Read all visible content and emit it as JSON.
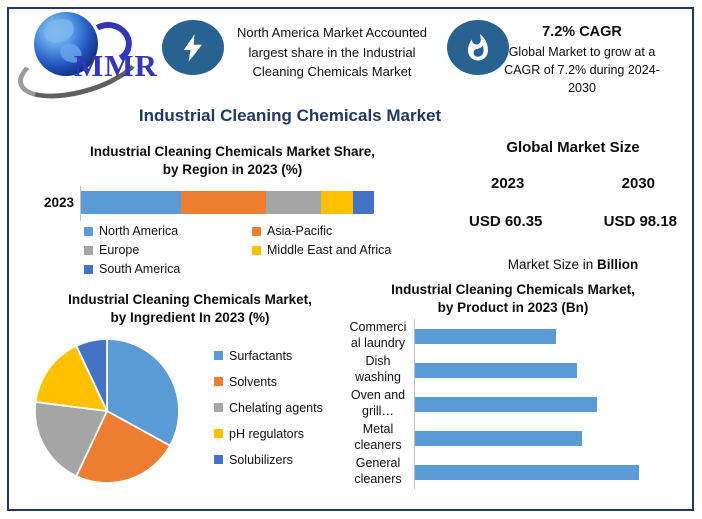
{
  "header": {
    "logo_text": "MMR",
    "highlight_text": "North America Market Accounted largest share in the Industrial Cleaning Chemicals Market",
    "cagr": {
      "title": "7.2% CAGR",
      "body": "Global Market to grow at a CAGR of 7.2% during 2024-2030"
    }
  },
  "main_title": "Industrial Cleaning Chemicals Market",
  "market_size": {
    "title": "Global Market Size",
    "year_left": "2023",
    "year_right": "2030",
    "value_left": "USD 60.35",
    "value_right": "USD 98.18",
    "note_prefix": "Market Size in ",
    "note_bold": "Billion",
    "value_color": "#1E88C7"
  },
  "colors": {
    "frame_border": "#203864",
    "title_navy": "#1F3864",
    "icon_badge": "#276290",
    "excel_blue": "#5B9BD5",
    "excel_orange": "#ED7D31",
    "excel_gray": "#A5A5A5",
    "excel_yellow": "#FFC000",
    "excel_dark_blue": "#4472C4"
  },
  "chart_data": [
    {
      "id": "region_share",
      "type": "bar",
      "subtype": "stacked-horizontal",
      "title": "Industrial Cleaning Chemicals Market Share, by Region in 2023 (%)",
      "title_lines": [
        "Industrial Cleaning Chemicals Market Share,",
        "by Region in 2023 (%)"
      ],
      "category": "2023",
      "unit": "%",
      "xlim": [
        0,
        100
      ],
      "legend_position": "bottom",
      "series": [
        {
          "name": "North America",
          "value": 34,
          "color": "#5B9BD5"
        },
        {
          "name": "Asia-Pacific",
          "value": 29,
          "color": "#ED7D31"
        },
        {
          "name": "Europe",
          "value": 19,
          "color": "#A5A5A5"
        },
        {
          "name": "Middle East and Africa",
          "value": 11,
          "color": "#FFC000"
        },
        {
          "name": "South America",
          "value": 7,
          "color": "#4472C4"
        }
      ]
    },
    {
      "id": "ingredient_share",
      "type": "pie",
      "title": "Industrial Cleaning Chemicals Market, by Ingredient In 2023 (%)",
      "title_lines": [
        "Industrial Cleaning Chemicals Market,",
        "by Ingredient In 2023 (%)"
      ],
      "unit": "%",
      "start_angle_deg": 0,
      "direction": "clockwise",
      "legend_position": "right",
      "slices": [
        {
          "name": "Surfactants",
          "value": 33,
          "color": "#5B9BD5"
        },
        {
          "name": "Solvents",
          "value": 24,
          "color": "#ED7D31"
        },
        {
          "name": "Chelating agents",
          "value": 20,
          "color": "#A5A5A5"
        },
        {
          "name": "pH regulators",
          "value": 16,
          "color": "#FFC000"
        },
        {
          "name": "Solubilizers",
          "value": 7,
          "color": "#4472C4"
        }
      ]
    },
    {
      "id": "product_size",
      "type": "bar",
      "subtype": "horizontal",
      "title": "Industrial Cleaning Chemicals Market, by Product in 2023 (Bn)",
      "title_lines": [
        "Industrial Cleaning Chemicals Market,",
        "by Product in 2023 (Bn)"
      ],
      "unit": "Bn",
      "xlim": [
        0,
        20
      ],
      "values_estimated": true,
      "bar_color": "#5B9BD5",
      "bars": [
        {
          "label": "Commercial laundry",
          "label_lines": [
            "Commerci",
            "al laundry"
          ],
          "value": 10.4
        },
        {
          "label": "Dish washing",
          "label_lines": [
            "Dish",
            "washing"
          ],
          "value": 11.9
        },
        {
          "label": "Oven and grill…",
          "label_lines": [
            "Oven and",
            "grill…"
          ],
          "value": 13.4
        },
        {
          "label": "Metal cleaners",
          "label_lines": [
            "Metal",
            "cleaners"
          ],
          "value": 12.3
        },
        {
          "label": "General cleaners",
          "label_lines": [
            "General",
            "cleaners"
          ],
          "value": 16.5
        }
      ]
    }
  ]
}
